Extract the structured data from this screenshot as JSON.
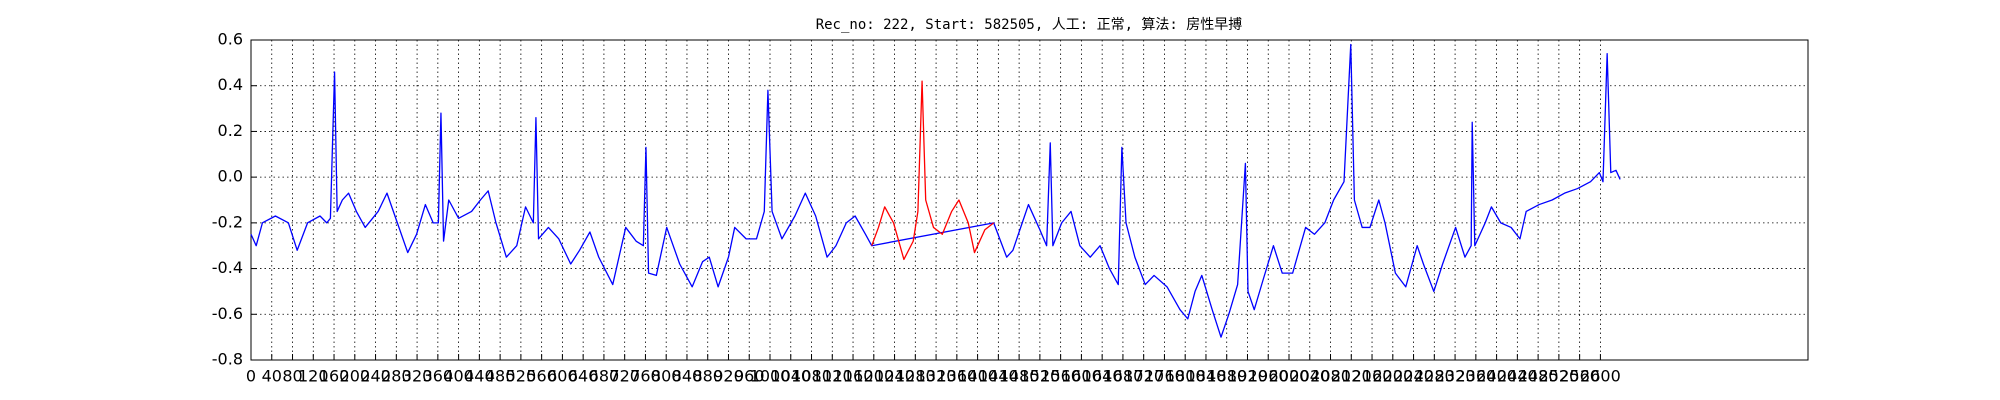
{
  "chart_data": {
    "type": "line",
    "title": "Rec_no: 222, Start: 582505, 人工: 正常, 算法: 房性早搏",
    "xlim": [
      0,
      3000
    ],
    "ylim": [
      -0.8,
      0.6
    ],
    "xticks": [
      0,
      40,
      80,
      120,
      160,
      200,
      240,
      280,
      320,
      360,
      400,
      440,
      480,
      520,
      560,
      600,
      640,
      680,
      720,
      760,
      800,
      840,
      880,
      920,
      960,
      1000,
      1040,
      1080,
      1120,
      1160,
      1200,
      1240,
      1280,
      1320,
      1360,
      1400,
      1440,
      1480,
      1520,
      1560,
      1600,
      1640,
      1680,
      1720,
      1760,
      1800,
      1840,
      1880,
      1920,
      1960,
      2000,
      2040,
      2080,
      2120,
      2160,
      2200,
      2240,
      2280,
      2320,
      2360,
      2400,
      2440,
      2480,
      2520,
      2560,
      2600
    ],
    "yticks": [
      -0.8,
      -0.6,
      -0.4,
      -0.2,
      {
        "value": 0,
        "label": "0.0"
      },
      0.2,
      0.4,
      0.6
    ],
    "grid": true,
    "series": [
      {
        "color": "#0000ff",
        "x": [
          0,
          10,
          22,
          47,
          72,
          89,
          109,
          133,
          146,
          153,
          161,
          166,
          176,
          188,
          203,
          220,
          245,
          262,
          282,
          302,
          319,
          336,
          351,
          361,
          366,
          371,
          381,
          400,
          425,
          442,
          457,
          472,
          492,
          512,
          529,
          544,
          549,
          554,
          573,
          593,
          616,
          633,
          653,
          670,
          697,
          722,
          742,
          756,
          761,
          766,
          781,
          801,
          826,
          850,
          870,
          883,
          900,
          920,
          932,
          954,
          974,
          989,
          996,
          1004,
          1023,
          1048,
          1068,
          1088,
          1110,
          1127,
          1147,
          1164,
          1184,
          1196,
          1431,
          1456,
          1468,
          1486,
          1498,
          1518,
          1533,
          1540,
          1545,
          1562,
          1580,
          1597,
          1617,
          1636,
          1654,
          1671,
          1678,
          1686,
          1703,
          1723,
          1740,
          1765,
          1790,
          1805,
          1819,
          1832,
          1852,
          1869,
          1884,
          1901,
          1916,
          1921,
          1933,
          1950,
          1970,
          1987,
          2007,
          2032,
          2049,
          2069,
          2086,
          2106,
          2119,
          2126,
          2141,
          2156,
          2173,
          2185,
          2205,
          2225,
          2247,
          2259,
          2279,
          2296,
          2321,
          2339,
          2351,
          2353,
          2358,
          2378,
          2390,
          2408,
          2428,
          2445,
          2457,
          2482,
          2507,
          2531,
          2556,
          2581,
          2598,
          2605,
          2613,
          2620,
          2630,
          2638
        ],
        "values": [
          -0.25,
          -0.3,
          -0.2,
          -0.17,
          -0.2,
          -0.32,
          -0.2,
          -0.17,
          -0.2,
          -0.18,
          0.46,
          -0.15,
          -0.1,
          -0.07,
          -0.15,
          -0.22,
          -0.15,
          -0.07,
          -0.2,
          -0.33,
          -0.25,
          -0.12,
          -0.2,
          -0.2,
          0.28,
          -0.28,
          -0.1,
          -0.18,
          -0.15,
          -0.1,
          -0.06,
          -0.2,
          -0.35,
          -0.3,
          -0.13,
          -0.2,
          0.26,
          -0.27,
          -0.22,
          -0.27,
          -0.38,
          -0.32,
          -0.24,
          -0.35,
          -0.47,
          -0.22,
          -0.28,
          -0.3,
          0.13,
          -0.42,
          -0.43,
          -0.22,
          -0.38,
          -0.48,
          -0.37,
          -0.35,
          -0.48,
          -0.35,
          -0.22,
          -0.27,
          -0.27,
          -0.15,
          0.38,
          -0.15,
          -0.27,
          -0.17,
          -0.07,
          -0.17,
          -0.35,
          -0.3,
          -0.2,
          -0.17,
          -0.25,
          -0.3,
          -0.2,
          -0.35,
          -0.32,
          -0.2,
          -0.12,
          -0.22,
          -0.3,
          0.15,
          -0.3,
          -0.2,
          -0.15,
          -0.3,
          -0.35,
          -0.3,
          -0.4,
          -0.47,
          0.13,
          -0.2,
          -0.35,
          -0.47,
          -0.43,
          -0.48,
          -0.58,
          -0.62,
          -0.5,
          -0.43,
          -0.58,
          -0.7,
          -0.6,
          -0.47,
          0.06,
          -0.5,
          -0.58,
          -0.45,
          -0.3,
          -0.42,
          -0.42,
          -0.22,
          -0.25,
          -0.2,
          -0.1,
          -0.02,
          0.58,
          -0.1,
          -0.22,
          -0.22,
          -0.1,
          -0.2,
          -0.42,
          -0.48,
          -0.3,
          -0.38,
          -0.5,
          -0.38,
          -0.22,
          -0.35,
          -0.3,
          0.24,
          -0.3,
          -0.2,
          -0.13,
          -0.2,
          -0.22,
          -0.27,
          -0.15,
          -0.12,
          -0.1,
          -0.07,
          -0.05,
          -0.02,
          0.02,
          -0.02,
          0.54,
          0.02,
          0.03,
          -0.01
        ]
      },
      {
        "color": "#ff0000",
        "x": [
          1196,
          1209,
          1221,
          1238,
          1258,
          1276,
          1285,
          1293,
          1300,
          1315,
          1332,
          1350,
          1364,
          1382,
          1394,
          1414,
          1431
        ],
        "values": [
          -0.3,
          -0.22,
          -0.13,
          -0.2,
          -0.36,
          -0.28,
          -0.15,
          0.42,
          -0.1,
          -0.22,
          -0.25,
          -0.15,
          -0.1,
          -0.2,
          -0.33,
          -0.23,
          -0.2
        ]
      }
    ]
  }
}
